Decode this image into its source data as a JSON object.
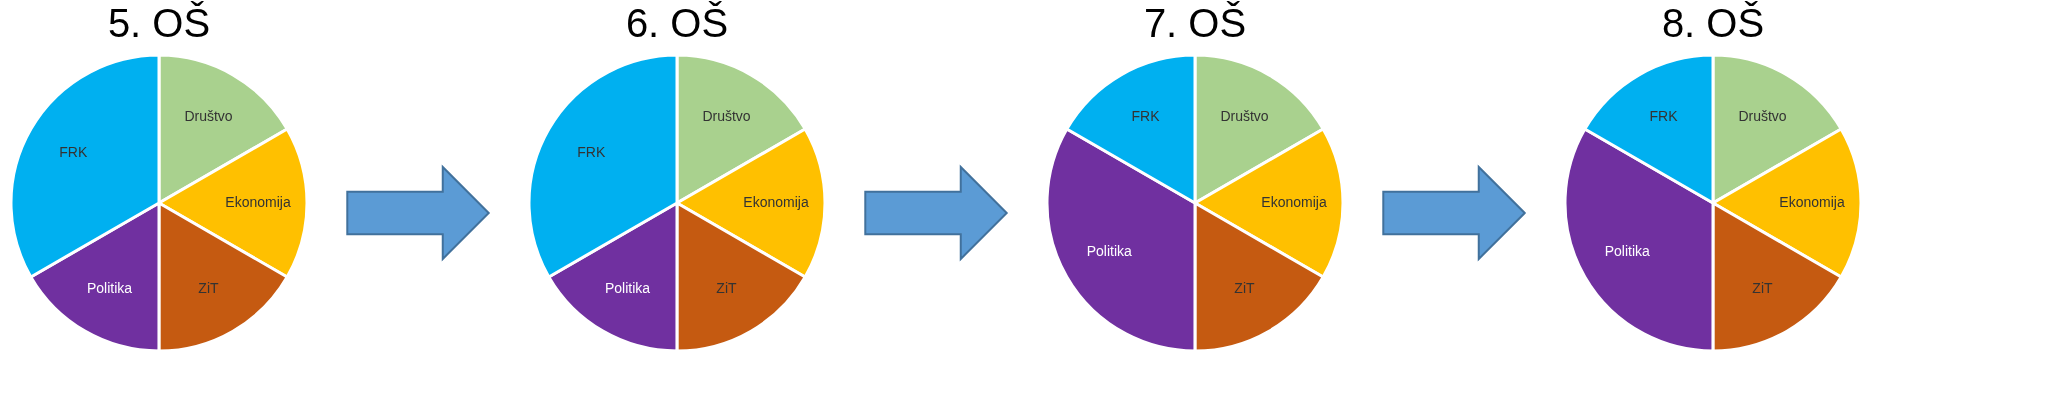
{
  "chart_data": [
    {
      "type": "pie",
      "title": "5. OŠ",
      "categories": [
        "Društvo",
        "Ekonomija",
        "ZiT",
        "Politika",
        "FRK"
      ],
      "values": [
        16.67,
        16.67,
        16.67,
        16.67,
        33.33
      ],
      "colors": [
        "#a9d18e",
        "#ffc000",
        "#c55a11",
        "#7030a0",
        "#00b0f0"
      ]
    },
    {
      "type": "pie",
      "title": "6. OŠ",
      "categories": [
        "Društvo",
        "Ekonomija",
        "ZiT",
        "Politika",
        "FRK"
      ],
      "values": [
        16.67,
        16.67,
        16.67,
        16.67,
        33.33
      ],
      "colors": [
        "#a9d18e",
        "#ffc000",
        "#c55a11",
        "#7030a0",
        "#00b0f0"
      ]
    },
    {
      "type": "pie",
      "title": "7. OŠ",
      "categories": [
        "Društvo",
        "Ekonomija",
        "ZiT",
        "Politika",
        "FRK"
      ],
      "values": [
        16.67,
        16.67,
        16.67,
        33.33,
        16.67
      ],
      "colors": [
        "#a9d18e",
        "#ffc000",
        "#c55a11",
        "#7030a0",
        "#00b0f0"
      ]
    },
    {
      "type": "pie",
      "title": "8. OŠ",
      "categories": [
        "Društvo",
        "Ekonomija",
        "ZiT",
        "Politika",
        "FRK"
      ],
      "values": [
        16.67,
        16.67,
        16.67,
        33.33,
        16.67
      ],
      "colors": [
        "#a9d18e",
        "#ffc000",
        "#c55a11",
        "#7030a0",
        "#00b0f0"
      ]
    }
  ]
}
